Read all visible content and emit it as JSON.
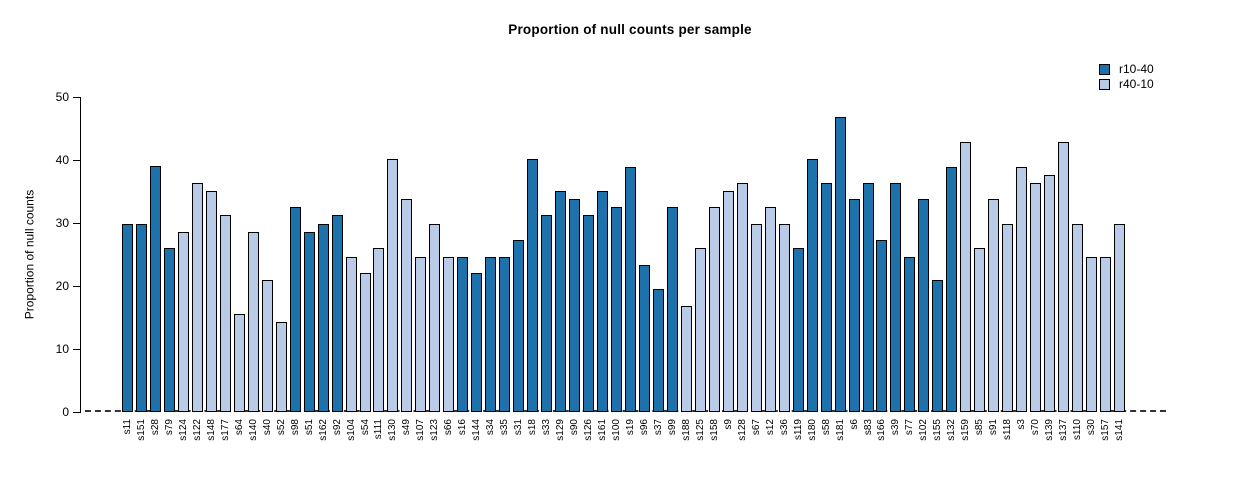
{
  "chart_data": {
    "type": "bar",
    "title": "Proportion of null counts per sample",
    "ylabel": "Proportion of null counts",
    "xlabel": "",
    "ylim": [
      0,
      50
    ],
    "yticks": [
      0,
      10,
      20,
      30,
      40,
      50
    ],
    "grid": false,
    "legend_position": "top-right",
    "zero_line_style": "dashed",
    "series": [
      {
        "name": "r10-40",
        "color": "#1E72AB"
      },
      {
        "name": "r40-10",
        "color": "#BACBE8"
      }
    ],
    "bars": [
      {
        "label": "s11",
        "value": 29.8,
        "series": "r10-40"
      },
      {
        "label": "s151",
        "value": 29.8,
        "series": "r10-40"
      },
      {
        "label": "s28",
        "value": 39.0,
        "series": "r10-40"
      },
      {
        "label": "s79",
        "value": 26.0,
        "series": "r10-40"
      },
      {
        "label": "s124",
        "value": 28.6,
        "series": "r40-10"
      },
      {
        "label": "s122",
        "value": 36.3,
        "series": "r40-10"
      },
      {
        "label": "s148",
        "value": 35.0,
        "series": "r40-10"
      },
      {
        "label": "s177",
        "value": 31.2,
        "series": "r40-10"
      },
      {
        "label": "s64",
        "value": 15.6,
        "series": "r40-10"
      },
      {
        "label": "s140",
        "value": 28.6,
        "series": "r40-10"
      },
      {
        "label": "s40",
        "value": 20.9,
        "series": "r40-10"
      },
      {
        "label": "s52",
        "value": 14.3,
        "series": "r40-10"
      },
      {
        "label": "s98",
        "value": 32.5,
        "series": "r10-40"
      },
      {
        "label": "s51",
        "value": 28.6,
        "series": "r10-40"
      },
      {
        "label": "s162",
        "value": 29.8,
        "series": "r10-40"
      },
      {
        "label": "s92",
        "value": 31.2,
        "series": "r10-40"
      },
      {
        "label": "s104",
        "value": 24.6,
        "series": "r40-10"
      },
      {
        "label": "s54",
        "value": 22.1,
        "series": "r40-10"
      },
      {
        "label": "s111",
        "value": 26.0,
        "series": "r40-10"
      },
      {
        "label": "s130",
        "value": 40.2,
        "series": "r40-10"
      },
      {
        "label": "s49",
        "value": 33.8,
        "series": "r40-10"
      },
      {
        "label": "s107",
        "value": 24.6,
        "series": "r40-10"
      },
      {
        "label": "s123",
        "value": 29.8,
        "series": "r40-10"
      },
      {
        "label": "s66",
        "value": 24.6,
        "series": "r40-10"
      },
      {
        "label": "s16",
        "value": 24.6,
        "series": "r10-40"
      },
      {
        "label": "s144",
        "value": 22.1,
        "series": "r10-40"
      },
      {
        "label": "s34",
        "value": 24.6,
        "series": "r10-40"
      },
      {
        "label": "s35",
        "value": 24.6,
        "series": "r10-40"
      },
      {
        "label": "s31",
        "value": 27.3,
        "series": "r10-40"
      },
      {
        "label": "s18",
        "value": 40.2,
        "series": "r10-40"
      },
      {
        "label": "s33",
        "value": 31.2,
        "series": "r10-40"
      },
      {
        "label": "s129",
        "value": 35.0,
        "series": "r10-40"
      },
      {
        "label": "s90",
        "value": 33.8,
        "series": "r10-40"
      },
      {
        "label": "s126",
        "value": 31.2,
        "series": "r10-40"
      },
      {
        "label": "s161",
        "value": 35.0,
        "series": "r10-40"
      },
      {
        "label": "s100",
        "value": 32.5,
        "series": "r10-40"
      },
      {
        "label": "s19",
        "value": 38.9,
        "series": "r10-40"
      },
      {
        "label": "s96",
        "value": 23.3,
        "series": "r10-40"
      },
      {
        "label": "s37",
        "value": 19.6,
        "series": "r10-40"
      },
      {
        "label": "s99",
        "value": 32.5,
        "series": "r10-40"
      },
      {
        "label": "s188",
        "value": 16.9,
        "series": "r40-10"
      },
      {
        "label": "s125",
        "value": 26.0,
        "series": "r40-10"
      },
      {
        "label": "s158",
        "value": 32.5,
        "series": "r40-10"
      },
      {
        "label": "s9",
        "value": 35.0,
        "series": "r40-10"
      },
      {
        "label": "s128",
        "value": 36.4,
        "series": "r40-10"
      },
      {
        "label": "s67",
        "value": 29.8,
        "series": "r40-10"
      },
      {
        "label": "s12",
        "value": 32.5,
        "series": "r40-10"
      },
      {
        "label": "s36",
        "value": 29.8,
        "series": "r40-10"
      },
      {
        "label": "s119",
        "value": 26.0,
        "series": "r10-40"
      },
      {
        "label": "s180",
        "value": 40.2,
        "series": "r10-40"
      },
      {
        "label": "s58",
        "value": 36.4,
        "series": "r10-40"
      },
      {
        "label": "s181",
        "value": 46.8,
        "series": "r10-40"
      },
      {
        "label": "s6",
        "value": 33.8,
        "series": "r10-40"
      },
      {
        "label": "s83",
        "value": 36.4,
        "series": "r10-40"
      },
      {
        "label": "s166",
        "value": 27.3,
        "series": "r10-40"
      },
      {
        "label": "s39",
        "value": 36.4,
        "series": "r10-40"
      },
      {
        "label": "s77",
        "value": 24.6,
        "series": "r10-40"
      },
      {
        "label": "s102",
        "value": 33.8,
        "series": "r10-40"
      },
      {
        "label": "s155",
        "value": 20.9,
        "series": "r10-40"
      },
      {
        "label": "s132",
        "value": 38.9,
        "series": "r10-40"
      },
      {
        "label": "s159",
        "value": 42.8,
        "series": "r40-10"
      },
      {
        "label": "s85",
        "value": 26.0,
        "series": "r40-10"
      },
      {
        "label": "s91",
        "value": 33.8,
        "series": "r40-10"
      },
      {
        "label": "s118",
        "value": 29.8,
        "series": "r40-10"
      },
      {
        "label": "s3",
        "value": 38.9,
        "series": "r40-10"
      },
      {
        "label": "s70",
        "value": 36.3,
        "series": "r40-10"
      },
      {
        "label": "s139",
        "value": 37.6,
        "series": "r40-10"
      },
      {
        "label": "s137",
        "value": 42.8,
        "series": "r40-10"
      },
      {
        "label": "s110",
        "value": 29.8,
        "series": "r40-10"
      },
      {
        "label": "s30",
        "value": 24.6,
        "series": "r40-10"
      },
      {
        "label": "s157",
        "value": 24.6,
        "series": "r40-10"
      },
      {
        "label": "s141",
        "value": 29.8,
        "series": "r40-10"
      }
    ]
  }
}
